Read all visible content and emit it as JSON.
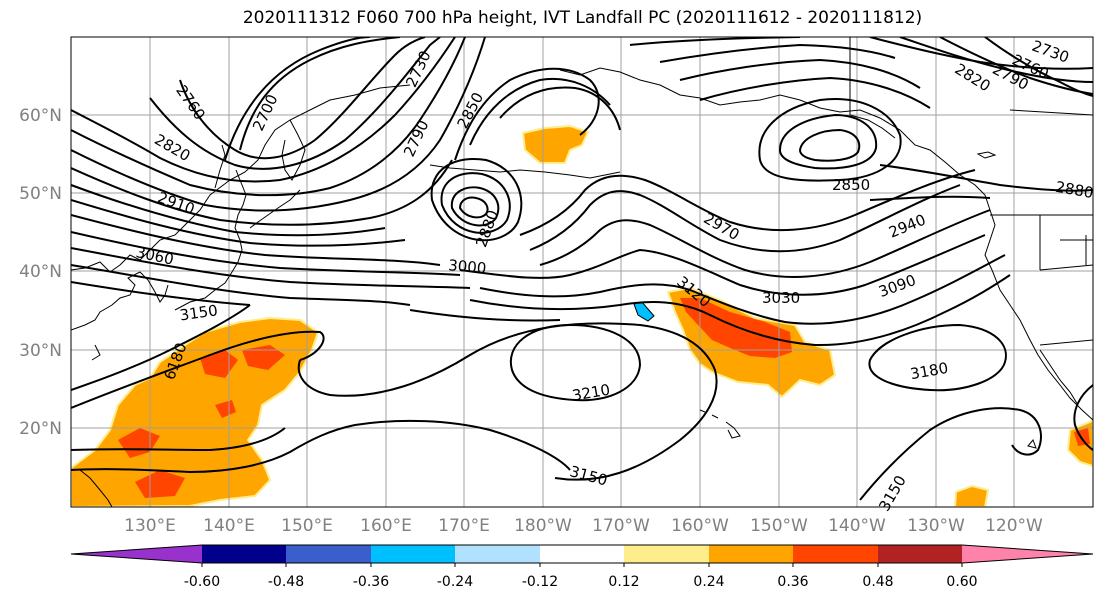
{
  "title": "2020111312 F060 700 hPa height, IVT Landfall PC (2020111612 - 2020111812)",
  "lat_labels": [
    "60°N",
    "50°N",
    "40°N",
    "30°N",
    "20°N"
  ],
  "lon_labels": [
    "130°E",
    "140°E",
    "150°E",
    "160°E",
    "170°E",
    "180°W",
    "170°W",
    "160°W",
    "150°W",
    "140°W",
    "130°W",
    "120°W"
  ],
  "contour_labels": [
    "2760",
    "2700",
    "2730",
    "2850",
    "2790",
    "2820",
    "2730",
    "2760",
    "2790",
    "2820",
    "2910",
    "2880",
    "2850",
    "3060",
    "2940",
    "3150",
    "2970",
    "3000",
    "3090",
    "3030",
    "3120",
    "6180",
    "3180",
    "3210",
    "3150",
    "3150",
    "2880"
  ],
  "colorbar": {
    "ticks": [
      "-0.60",
      "-0.48",
      "-0.36",
      "-0.24",
      "-0.12",
      "0.12",
      "0.24",
      "0.36",
      "0.48",
      "0.60"
    ],
    "colors": [
      "#9932cc",
      "#00008b",
      "#3a5fcd",
      "#00bfff",
      "#b0e2ff",
      "#ffffff",
      "#ffec8b",
      "#ffa500",
      "#ff4500",
      "#b22222",
      "#ff82ab"
    ]
  }
}
